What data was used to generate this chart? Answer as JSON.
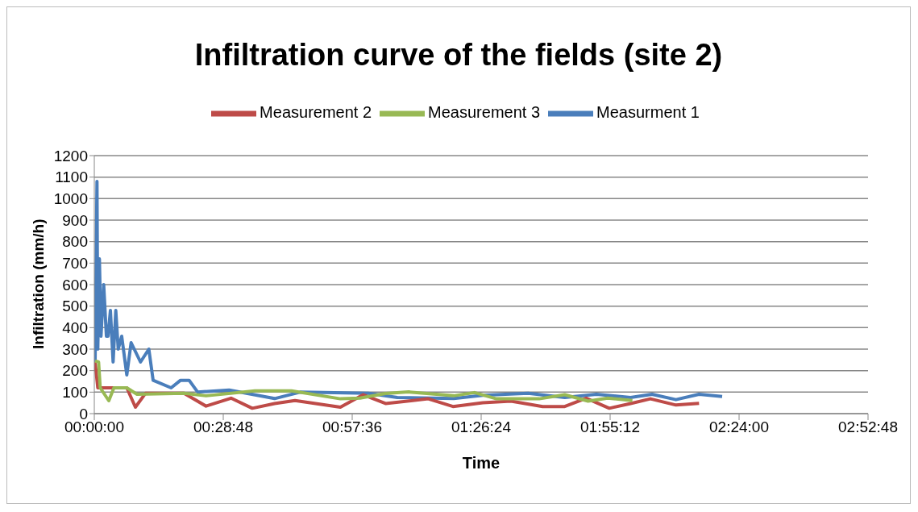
{
  "chart_data": {
    "type": "line",
    "title": "Infiltration curve of the fields (site 2)",
    "xlabel": "Time",
    "ylabel": "Infiltration (mm/h)",
    "xlim": [
      0,
      2.88
    ],
    "xticks": [
      {
        "value": 0,
        "label": "00:00:00"
      },
      {
        "value": 0.48,
        "label": "00:28:48"
      },
      {
        "value": 0.96,
        "label": "00:57:36"
      },
      {
        "value": 1.44,
        "label": "01:26:24"
      },
      {
        "value": 1.92,
        "label": "01:55:12"
      },
      {
        "value": 2.4,
        "label": "02:24:00"
      },
      {
        "value": 2.88,
        "label": "02:52:48"
      }
    ],
    "ylim": [
      0,
      1200
    ],
    "yticks": [
      0,
      100,
      200,
      300,
      400,
      500,
      600,
      700,
      800,
      900,
      1000,
      1100,
      1200
    ],
    "grid": "y",
    "legend": "top",
    "marker": "none",
    "line_style": "solid",
    "series": [
      {
        "name": "Measurment 1",
        "color": "#4a7ebb",
        "x": [
          0.003,
          0.01,
          0.013,
          0.019,
          0.025,
          0.035,
          0.045,
          0.051,
          0.06,
          0.07,
          0.08,
          0.089,
          0.102,
          0.121,
          0.137,
          0.172,
          0.203,
          0.219,
          0.286,
          0.321,
          0.353,
          0.385,
          0.502,
          0.671,
          0.766,
          1.02,
          1.128,
          1.338,
          1.446,
          1.615,
          1.751,
          1.869,
          1.996,
          2.076,
          2.165,
          2.251,
          2.337
        ],
        "values": [
          240,
          1080,
          300,
          720,
          360,
          600,
          360,
          360,
          480,
          240,
          480,
          300,
          360,
          180,
          330,
          240,
          300,
          155,
          120,
          155,
          155,
          100,
          110,
          70,
          100,
          95,
          75,
          70,
          85,
          95,
          75,
          90,
          75,
          90,
          65,
          90,
          80
        ]
      },
      {
        "name": "Measurement 2",
        "color": "#be4b48",
        "x": [
          0.003,
          0.013,
          0.057,
          0.121,
          0.153,
          0.191,
          0.334,
          0.416,
          0.509,
          0.588,
          0.671,
          0.747,
          0.916,
          1.001,
          1.084,
          1.243,
          1.335,
          1.446,
          1.551,
          1.669,
          1.751,
          1.831,
          1.917,
          1.996,
          2.07,
          2.165,
          2.251
        ],
        "values": [
          240,
          120,
          120,
          120,
          30,
          95,
          95,
          35,
          72,
          25,
          47,
          61,
          30,
          88,
          47,
          69,
          33,
          51,
          58,
          33,
          33,
          72,
          25,
          47,
          69,
          40,
          48
        ]
      },
      {
        "name": "Measurement 3",
        "color": "#98b954",
        "x": [
          0.003,
          0.016,
          0.022,
          0.054,
          0.073,
          0.121,
          0.159,
          0.334,
          0.416,
          0.598,
          0.734,
          0.916,
          0.989,
          1.084,
          1.17,
          1.338,
          1.415,
          1.497,
          1.656,
          1.751,
          1.838,
          1.911,
          2.003
        ],
        "values": [
          245,
          240,
          120,
          60,
          120,
          120,
          90,
          95,
          83,
          106,
          106,
          69,
          72,
          94,
          101,
          83,
          98,
          69,
          69,
          88,
          58,
          72,
          61
        ]
      }
    ]
  }
}
